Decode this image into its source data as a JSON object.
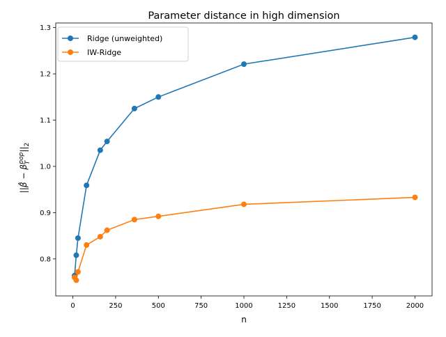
{
  "chart_data": {
    "type": "line",
    "title": "Parameter distance in high dimension",
    "xlabel": "n",
    "ylabel": "||β̂ − β_T^pop||₂",
    "xlim": [
      -100,
      2100
    ],
    "ylim": [
      0.72,
      1.31
    ],
    "xticks": [
      "0",
      "250",
      "500",
      "750",
      "1000",
      "1250",
      "1500",
      "1750",
      "2000"
    ],
    "yticks": [
      "0.8",
      "0.9",
      "1.0",
      "1.1",
      "1.2",
      "1.3"
    ],
    "grid": false,
    "legend_position": "top-left",
    "x": [
      10,
      20,
      30,
      80,
      160,
      200,
      360,
      500,
      1000,
      2000
    ],
    "series": [
      {
        "name": "Ridge (unweighted)",
        "color": "#1f77b4",
        "values": [
          0.764,
          0.808,
          0.845,
          0.959,
          1.035,
          1.054,
          1.125,
          1.15,
          1.221,
          1.279
        ]
      },
      {
        "name": "IW-Ridge",
        "color": "#ff7f0e",
        "values": [
          0.76,
          0.754,
          0.772,
          0.83,
          0.848,
          0.862,
          0.885,
          0.892,
          0.918,
          0.933
        ]
      }
    ]
  }
}
